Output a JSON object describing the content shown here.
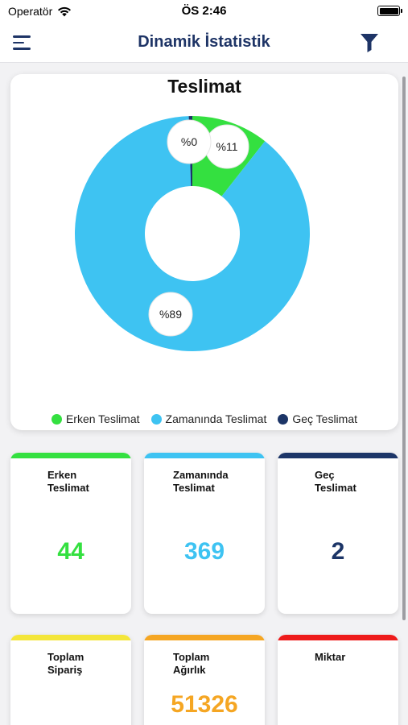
{
  "status_bar": {
    "carrier": "Operatör",
    "time": "ÖS 2:46",
    "battery_level": 1.0
  },
  "nav": {
    "title": "Dinamik İstatistik",
    "menu_icon": "hamburger-icon",
    "filter_icon": "filter-icon"
  },
  "colors": {
    "erken": "#34e040",
    "zamaninda": "#3ec3f2",
    "gec": "#1c3567",
    "toplam_siparis": "#f4e63a",
    "toplam_agirlik": "#f5a623",
    "miktar": "#ee1b1b",
    "navy": "#1e3466"
  },
  "chart_data": {
    "type": "pie",
    "title": "Teslimat",
    "categories": [
      "Erken Teslimat",
      "Zamanında Teslimat",
      "Geç Teslimat"
    ],
    "values": [
      44,
      369,
      2
    ],
    "labels": [
      "%11",
      "%89",
      "%0"
    ],
    "legend_position": "bottom",
    "donut": true
  },
  "cards": [
    {
      "label": "Erken\nTeslimat",
      "value": "44",
      "color": "#34e040"
    },
    {
      "label": "Zamanında\nTeslimat",
      "value": "369",
      "color": "#3ec3f2"
    },
    {
      "label": "Geç\nTeslimat",
      "value": "2",
      "color": "#1c3567"
    },
    {
      "label": "Toplam\nSipariş",
      "value": "",
      "color": "#f4e63a"
    },
    {
      "label": "Toplam\nAğırlık",
      "value": "51326",
      "color": "#f5a623"
    },
    {
      "label": "Miktar",
      "value": "",
      "color": "#ee1b1b"
    }
  ]
}
